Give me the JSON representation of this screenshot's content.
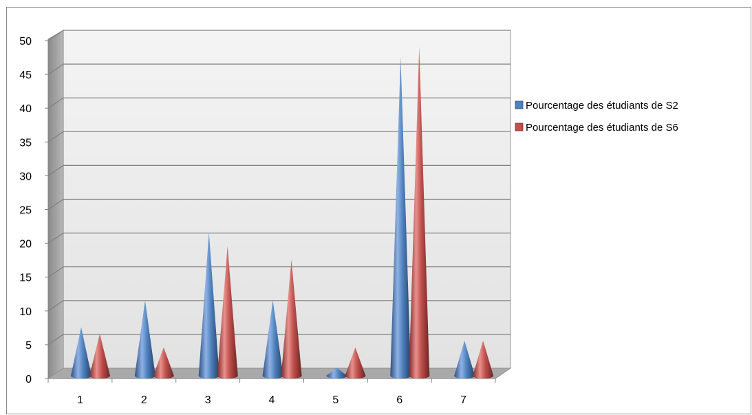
{
  "chart_data": {
    "type": "bar",
    "bar_shape": "cone",
    "three_d": true,
    "grid": true,
    "legend_position": "right",
    "categories": [
      "1",
      "2",
      "3",
      "4",
      "5",
      "6",
      "7"
    ],
    "ylim": [
      0,
      50
    ],
    "yticks": [
      "0",
      "5",
      "10",
      "15",
      "20",
      "25",
      "30",
      "35",
      "40",
      "45",
      "50"
    ],
    "title": "",
    "xlabel": "",
    "ylabel": "",
    "series": [
      {
        "name": "Pourcentage des étudiants  de S2",
        "color": "#4F81BD",
        "values": [
          7.5,
          11.5,
          21.5,
          11.5,
          1.5,
          47.5,
          5.5
        ]
      },
      {
        "name": "Pourcentage des étudiants  de S6",
        "color": "#C0504D",
        "values": [
          6.5,
          4.5,
          19.5,
          17.5,
          4.5,
          49,
          5.5
        ]
      }
    ]
  }
}
